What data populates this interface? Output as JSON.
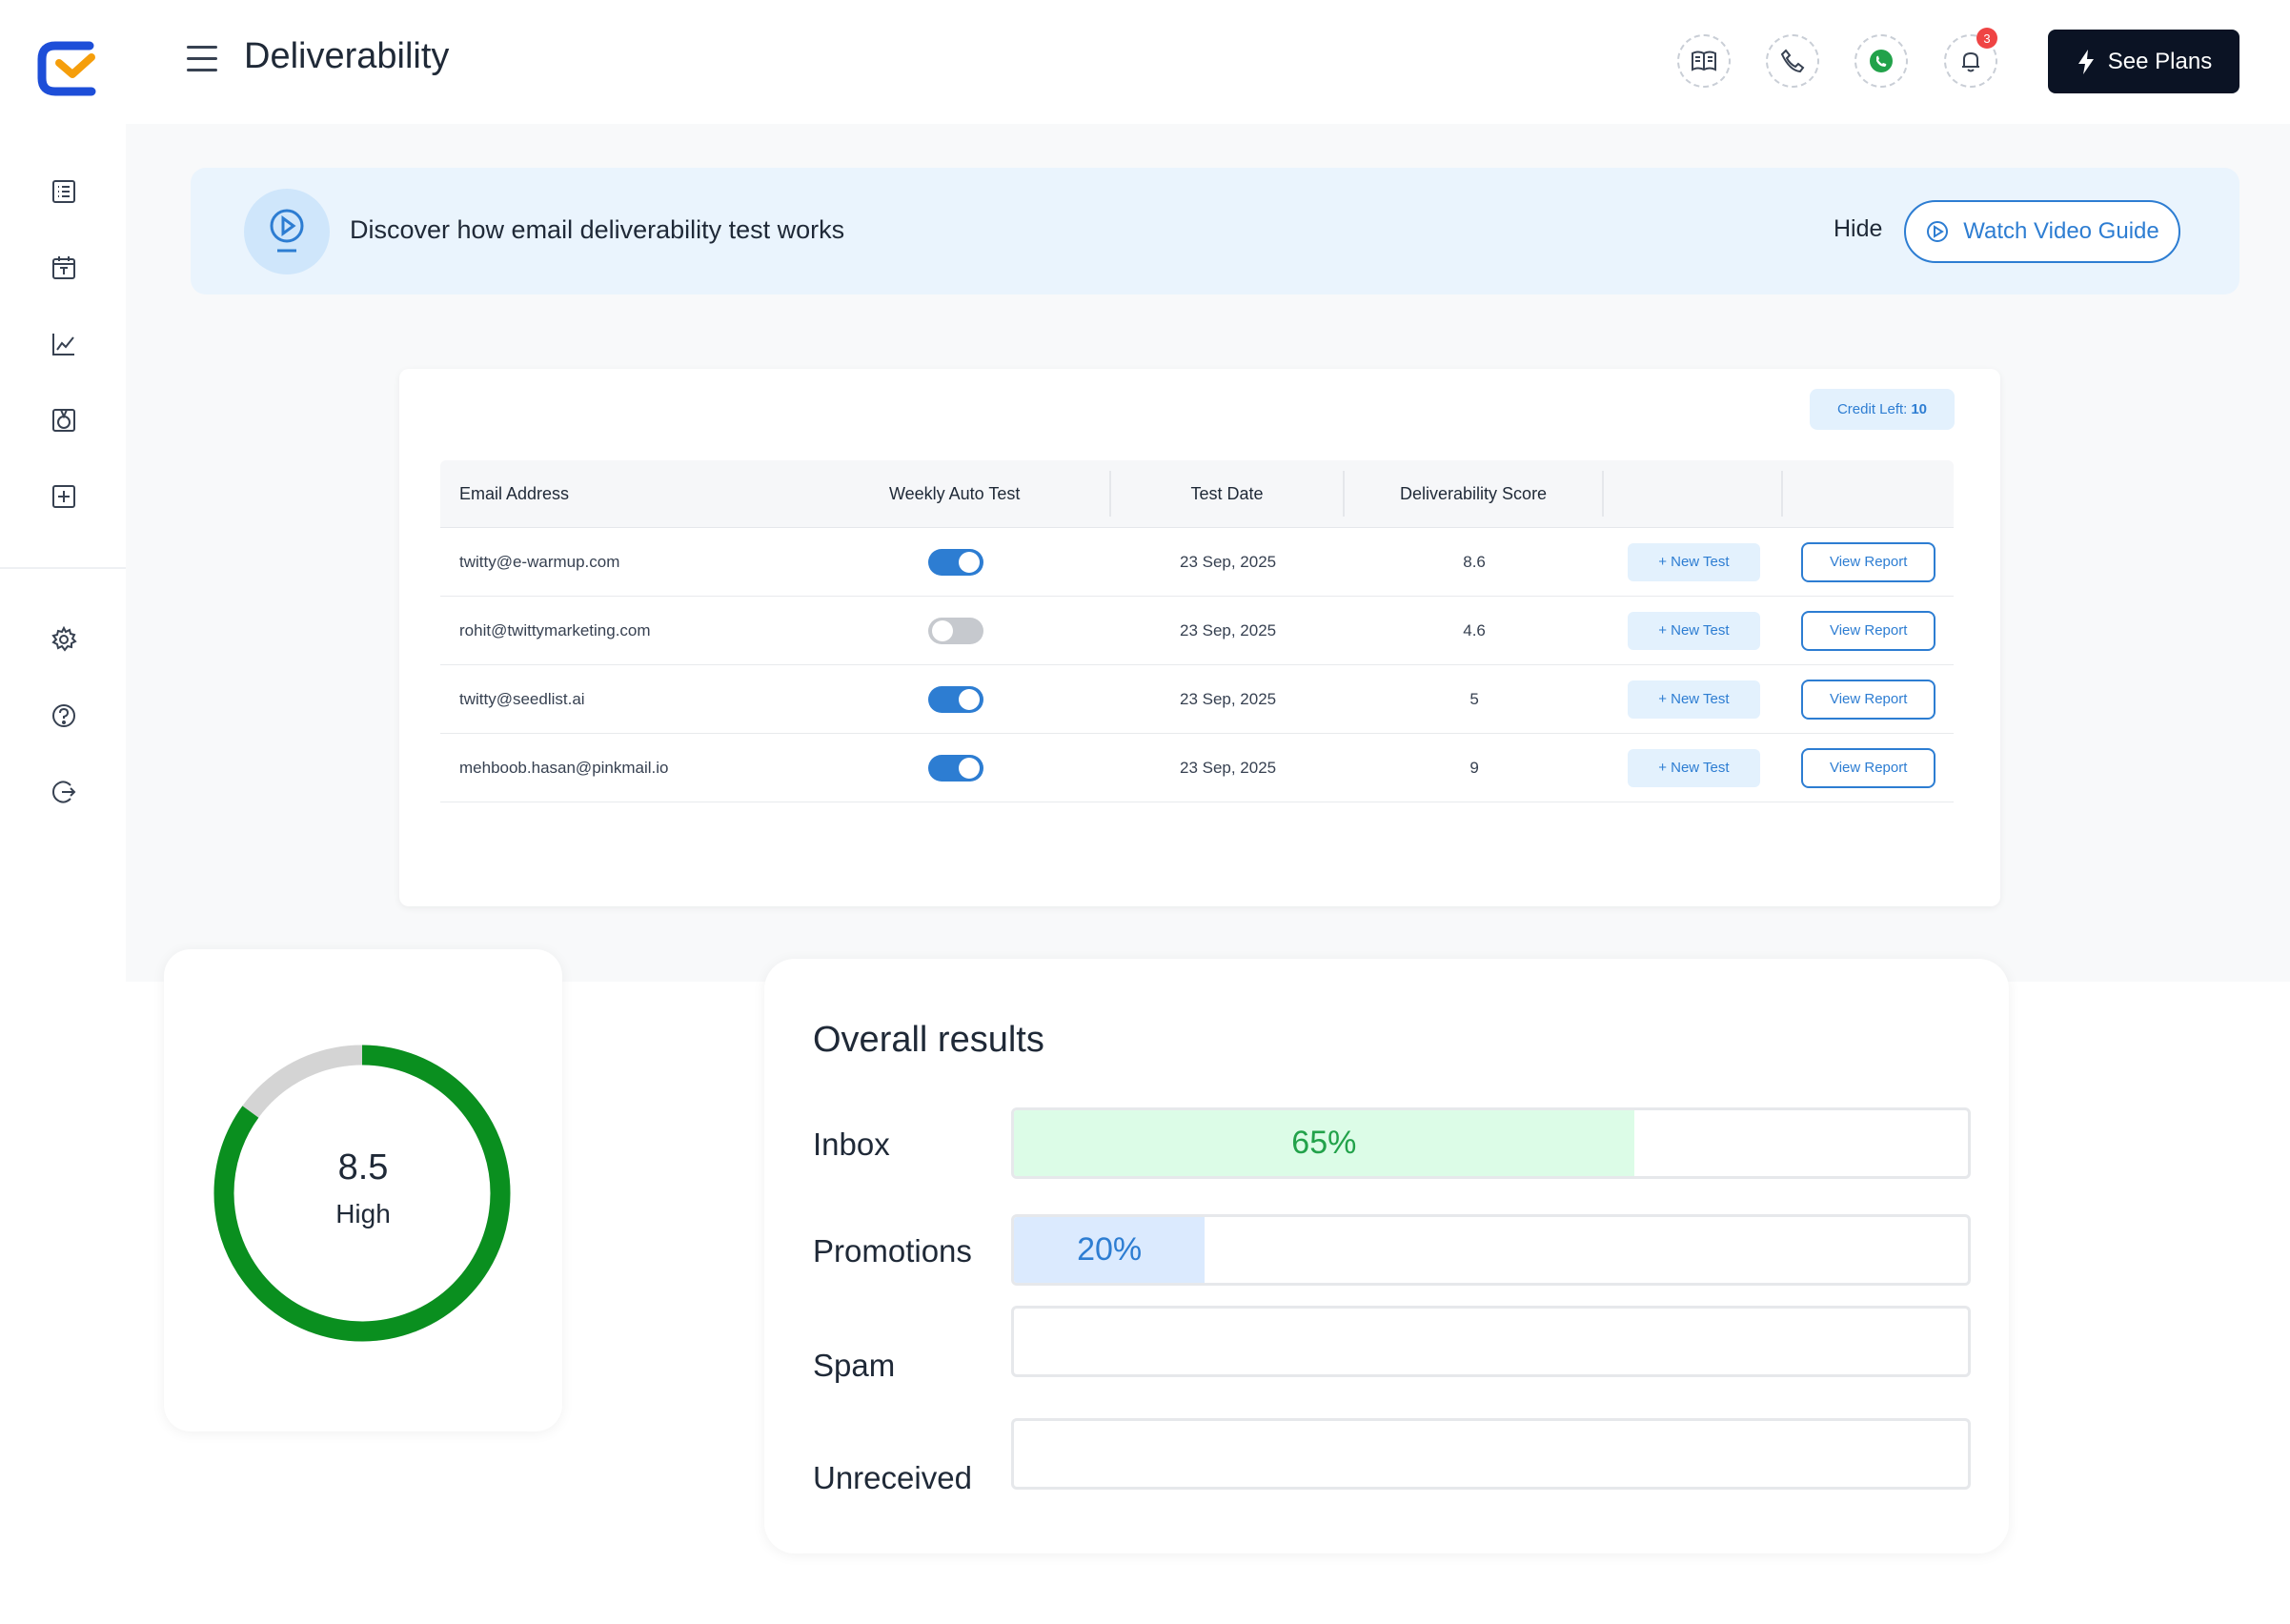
{
  "header": {
    "title": "Deliverability",
    "see_plans_label": "See Plans",
    "notification_count": "3",
    "icons": [
      "book-icon",
      "phone-icon",
      "whatsapp-icon",
      "bell-icon"
    ]
  },
  "sidebar": {
    "items": [
      "list-icon",
      "calendar-icon",
      "chart-icon",
      "badge-icon",
      "add-box-icon",
      "gear-icon",
      "help-icon",
      "logout-icon"
    ]
  },
  "banner": {
    "text": "Discover how email deliverability test works",
    "hide_label": "Hide",
    "watch_label": "Watch Video Guide"
  },
  "table": {
    "credit_label": "Credit Left:",
    "credit_value": "10",
    "headers": {
      "email": "Email Address",
      "weekly": "Weekly Auto Test",
      "date": "Test Date",
      "score": "Deliverability Score"
    },
    "rows": [
      {
        "email": "twitty@e-warmup.com",
        "weekly": true,
        "date": "23 Sep, 2025",
        "score": "8.6"
      },
      {
        "email": "rohit@twittymarketing.com",
        "weekly": false,
        "date": "23 Sep, 2025",
        "score": "4.6"
      },
      {
        "email": "twitty@seedlist.ai",
        "weekly": true,
        "date": "23 Sep, 2025",
        "score": "5"
      },
      {
        "email": "mehboob.hasan@pinkmail.io",
        "weekly": true,
        "date": "23 Sep, 2025",
        "score": "9"
      }
    ],
    "new_test_label": "+ New Test",
    "view_report_label": "View Report"
  },
  "score": {
    "value": "8.5",
    "max": 10,
    "label": "High",
    "color": "#0a8f1f",
    "track_color": "#d4d4d4"
  },
  "results": {
    "title": "Overall results",
    "items": [
      {
        "label": "Inbox",
        "percent": 65,
        "text": "65%"
      },
      {
        "label": "Promotions",
        "percent": 20,
        "text": "20%"
      },
      {
        "label": "Spam",
        "percent": 0,
        "text": ""
      },
      {
        "label": "Unreceived",
        "percent": 0,
        "text": ""
      }
    ]
  },
  "colors": {
    "accent": "#2d7dd2",
    "dark_button": "#0b1324",
    "inbox_fill": "#dcfce7",
    "promotions_fill": "#dbeafe"
  }
}
